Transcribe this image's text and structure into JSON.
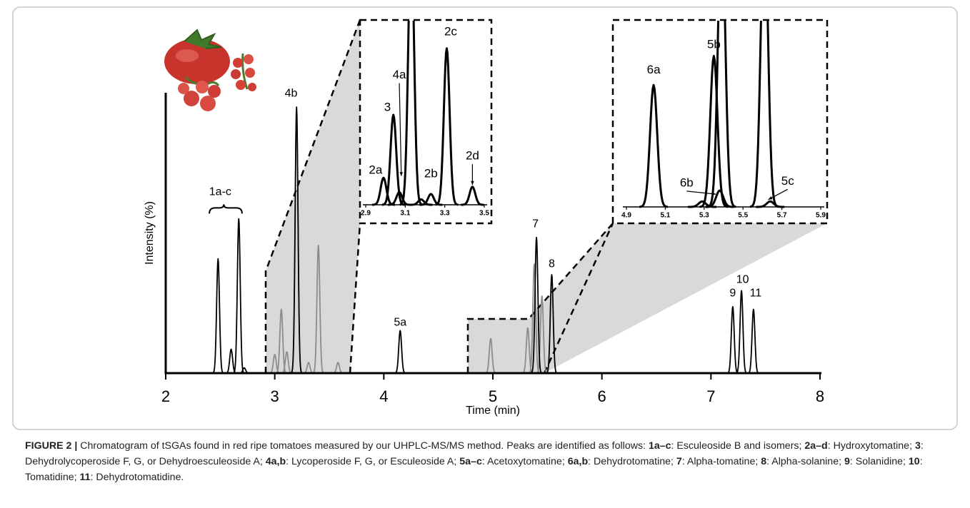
{
  "chart_data": [
    {
      "type": "chromatogram",
      "xlabel": "Time (min)",
      "ylabel": "Intensity (%)",
      "xlim": [
        2,
        8
      ],
      "xticks": [
        2,
        3,
        4,
        5,
        6,
        7,
        8
      ],
      "ylim": [
        0,
        100
      ],
      "series": [
        {
          "color": "#8c8c8c",
          "x": [
            3.0,
            3.06,
            3.11,
            3.2,
            3.31,
            3.4,
            3.58,
            4.98,
            5.32,
            5.38,
            5.45
          ],
          "values": [
            7,
            24,
            8,
            97,
            4,
            48,
            4,
            13,
            17,
            41,
            29
          ]
        },
        {
          "color": "#000000",
          "x": [
            2.48,
            2.6,
            2.67,
            2.72,
            3.2,
            4.15,
            5.4,
            5.54,
            7.2,
            7.28,
            7.39
          ],
          "values": [
            43,
            9,
            58,
            2,
            100,
            16,
            51,
            37,
            25,
            31,
            24
          ]
        }
      ],
      "annotations": [
        {
          "text": "1a-c",
          "x": 2.5,
          "y": 68,
          "xrange": [
            2.4,
            2.7
          ]
        },
        {
          "text": "4b",
          "x": 3.15,
          "y": 105
        },
        {
          "text": "5a",
          "x": 4.15,
          "y": 19
        },
        {
          "text": "7",
          "x": 5.39,
          "y": 56
        },
        {
          "text": "8",
          "x": 5.54,
          "y": 41
        },
        {
          "text": "9",
          "x": 7.2,
          "y": 30
        },
        {
          "text": "10",
          "x": 7.29,
          "y": 35
        },
        {
          "text": "11",
          "x": 7.41,
          "y": 30
        }
      ]
    },
    {
      "type": "chromatogram",
      "xlim": [
        2.9,
        3.5
      ],
      "xticks": [
        2.9,
        3.1,
        3.3,
        3.5
      ],
      "ylim": [
        0,
        100
      ],
      "series": [
        {
          "color": "#000000",
          "x": [
            2.99,
            3.04,
            3.07,
            3.13,
            3.18,
            3.23,
            3.31,
            3.44
          ],
          "values": [
            15,
            50,
            7,
            150,
            3,
            6,
            87,
            10
          ]
        }
      ],
      "annotations": [
        {
          "text": "2a",
          "x": 2.95,
          "y": 19
        },
        {
          "text": "3",
          "x": 3.01,
          "y": 54
        },
        {
          "text": "4a",
          "x": 3.07,
          "y": 72,
          "to": [
            3.08,
            16
          ]
        },
        {
          "text": "2b",
          "x": 3.23,
          "y": 17
        },
        {
          "text": "2c",
          "x": 3.33,
          "y": 96
        },
        {
          "text": "2d",
          "x": 3.44,
          "y": 27,
          "to": [
            3.44,
            11
          ]
        }
      ]
    },
    {
      "type": "chromatogram",
      "xlim": [
        4.9,
        5.9
      ],
      "xticks": [
        4.9,
        5.1,
        5.3,
        5.5,
        5.7,
        5.9
      ],
      "ylim": [
        0,
        100
      ],
      "series": [
        {
          "color": "#000000",
          "x": [
            5.04,
            5.29,
            5.35,
            5.38,
            5.39,
            5.61,
            5.64
          ],
          "values": [
            67,
            3,
            83,
            9,
            160,
            160,
            3
          ]
        }
      ],
      "annotations": [
        {
          "text": "6a",
          "x": 5.04,
          "y": 75
        },
        {
          "text": "5b",
          "x": 5.35,
          "y": 89
        },
        {
          "text": "6b",
          "x": 5.21,
          "y": 13,
          "to": [
            5.36,
            7
          ]
        },
        {
          "text": "5c",
          "x": 5.73,
          "y": 14,
          "to": [
            5.63,
            4
          ]
        }
      ]
    }
  ],
  "caption": {
    "parts": [
      {
        "text": "FIGURE 2 |",
        "bold": true
      },
      {
        "text": " Chromatogram of tSGAs found in red ripe tomatoes measured by our UHPLC-MS/MS method. Peaks are identified as follows: ",
        "bold": false
      },
      {
        "text": "1a–c",
        "bold": true
      },
      {
        "text": ": Esculeoside B and isomers; ",
        "bold": false
      },
      {
        "text": "2a–d",
        "bold": true
      },
      {
        "text": ": Hydroxytomatine; ",
        "bold": false
      },
      {
        "text": "3",
        "bold": true
      },
      {
        "text": ": Dehydrolycoperoside F, G, or Dehydroesculeoside A; ",
        "bold": false
      },
      {
        "text": "4a,b",
        "bold": true
      },
      {
        "text": ": Lycoperoside F, G, or Esculeoside A; ",
        "bold": false
      },
      {
        "text": "5a–c",
        "bold": true
      },
      {
        "text": ": Acetoxytomatine; ",
        "bold": false
      },
      {
        "text": "6a,b",
        "bold": true
      },
      {
        "text": ": Dehydrotomatine; ",
        "bold": false
      },
      {
        "text": "7",
        "bold": true
      },
      {
        "text": ": Alpha-tomatine; ",
        "bold": false
      },
      {
        "text": "8",
        "bold": true
      },
      {
        "text": ": Alpha-solanine; ",
        "bold": false
      },
      {
        "text": "9",
        "bold": true
      },
      {
        "text": ": Solanidine; ",
        "bold": false
      },
      {
        "text": "10",
        "bold": true
      },
      {
        "text": ": Tomatidine; ",
        "bold": false
      },
      {
        "text": "11",
        "bold": true
      },
      {
        "text": ": Dehydrotomatidine.",
        "bold": false
      }
    ]
  }
}
